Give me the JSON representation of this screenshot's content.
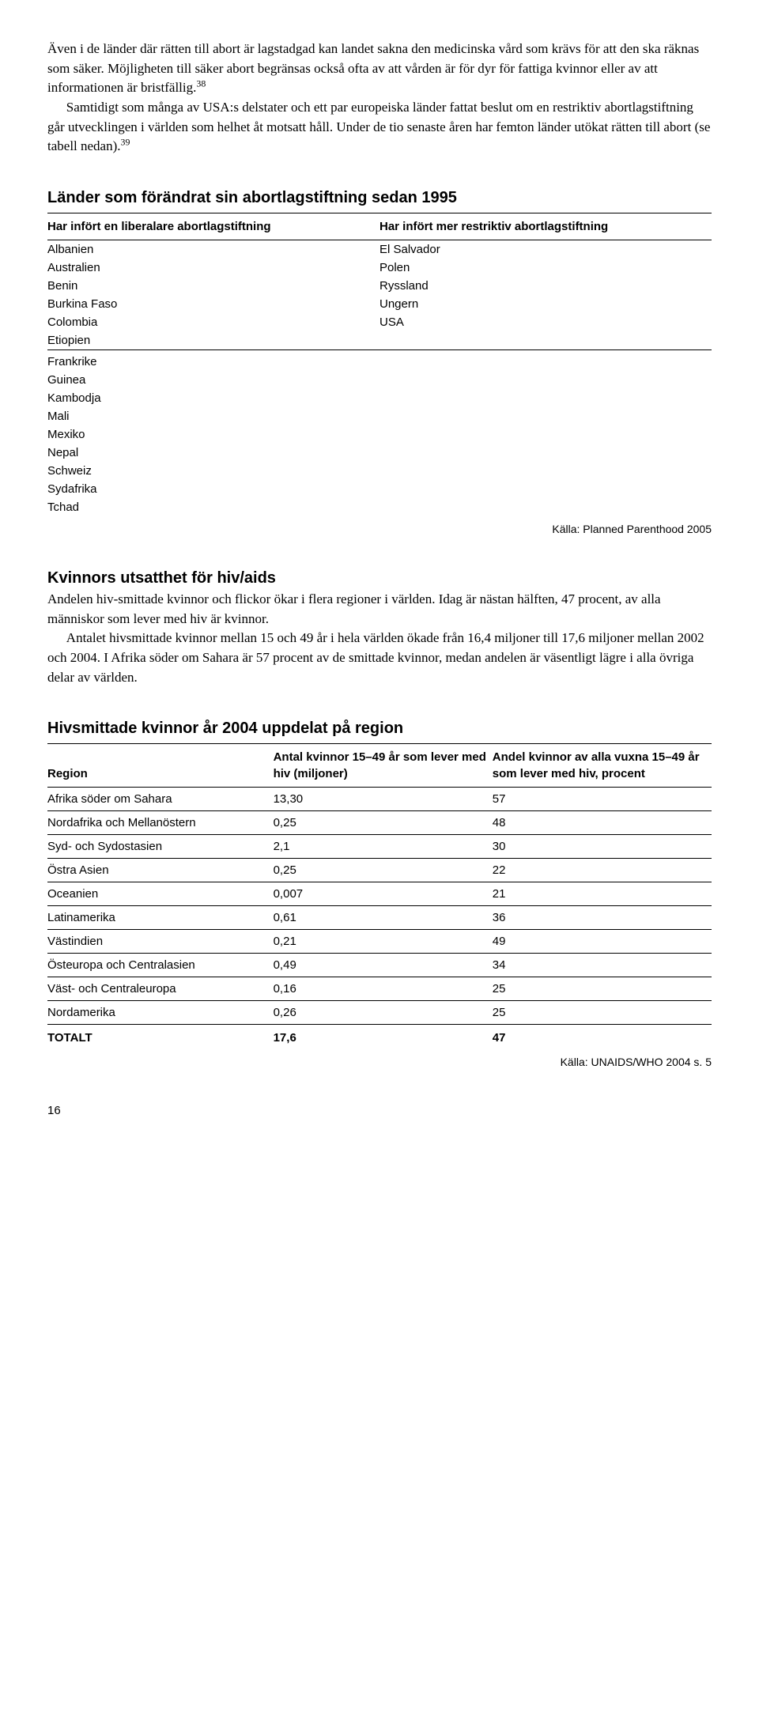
{
  "intro": {
    "p1a": "Även i de länder där rätten till abort är lagstadgad kan landet sakna den medicinska vård som krävs för att den ska räknas som säker. Möjligheten till säker abort begränsas också ofta av att vården är för dyr för fattiga kvinnor eller av att informationen är bristfällig.",
    "sup1": "38",
    "p2a": "Samtidigt som många av USA:s delstater och ett par europeiska länder fattat beslut om en restriktiv abortlagstiftning går utvecklingen i världen som helhet åt motsatt håll. Under de tio senaste åren har femton länder utökat rätten till abort (se tabell nedan).",
    "sup2": "39"
  },
  "table1": {
    "title": "Länder som förändrat sin abortlagstiftning sedan 1995",
    "head_left": "Har infört en liberalare abortlagstiftning",
    "head_right": "Har infört mer restriktiv abortlagstiftning",
    "rowsA": [
      [
        "Albanien",
        "El Salvador"
      ],
      [
        "Australien",
        "Polen"
      ],
      [
        "Benin",
        "Ryssland"
      ],
      [
        "Burkina Faso",
        "Ungern"
      ],
      [
        "Colombia",
        "USA"
      ],
      [
        "Etiopien",
        ""
      ]
    ],
    "rowsB": [
      [
        "Frankrike",
        ""
      ],
      [
        "Guinea",
        ""
      ],
      [
        "Kambodja",
        ""
      ],
      [
        "Mali",
        ""
      ],
      [
        "Mexiko",
        ""
      ],
      [
        "Nepal",
        ""
      ],
      [
        "Schweiz",
        ""
      ],
      [
        "Sydafrika",
        ""
      ],
      [
        "Tchad",
        ""
      ]
    ],
    "source": "Källa: Planned Parenthood 2005"
  },
  "hiv_section": {
    "title": "Kvinnors utsatthet för hiv/aids",
    "p1": "Andelen hiv-smittade kvinnor och flickor ökar i flera regioner i världen. Idag är nästan hälften, 47 procent, av alla människor som lever med hiv är kvinnor.",
    "p2": "Antalet hivsmittade kvinnor mellan 15 och 49 år i hela världen ökade från 16,4 miljoner till 17,6 miljoner mellan 2002 och 2004. I Afrika söder om Sahara är 57 procent av de smittade kvinnor, medan andelen är väsentligt lägre i alla övriga delar av världen."
  },
  "table2": {
    "title": "Hivsmittade kvinnor år 2004 uppdelat på region",
    "head": [
      "Region",
      "Antal kvinnor 15–49 år som lever med hiv (miljoner)",
      "Andel kvinnor av alla vuxna 15–49 år som lever med hiv, procent"
    ],
    "rows": [
      [
        "Afrika söder om Sahara",
        "13,30",
        "57"
      ],
      [
        "Nordafrika och Mellanöstern",
        "0,25",
        "48"
      ],
      [
        "Syd- och Sydostasien",
        "2,1",
        "30"
      ],
      [
        "Östra Asien",
        "0,25",
        "22"
      ],
      [
        "Oceanien",
        "0,007",
        "21"
      ],
      [
        "Latinamerika",
        "0,61",
        "36"
      ],
      [
        "Västindien",
        "0,21",
        "49"
      ],
      [
        "Östeuropa och Centralasien",
        "0,49",
        "34"
      ],
      [
        "Väst- och Centraleuropa",
        "0,16",
        "25"
      ],
      [
        "Nordamerika",
        "0,26",
        "25"
      ]
    ],
    "total": [
      "TOTALT",
      "17,6",
      "47"
    ],
    "source": "Källa: UNAIDS/WHO 2004 s. 5"
  },
  "pagenum": "16",
  "col_widths": {
    "t1_left": "50%",
    "t1_right": "50%",
    "t2_c1": "34%",
    "t2_c2": "33%",
    "t2_c3": "33%"
  }
}
